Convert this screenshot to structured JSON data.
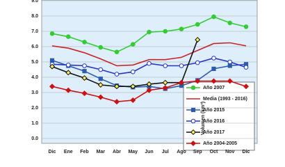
{
  "chart_data": {
    "type": "line",
    "y_label": "Volumen (km³)",
    "categories": [
      "Dic",
      "Ene",
      "Feb",
      "Mar",
      "Abr",
      "May",
      "Jun",
      "Jul",
      "Ago",
      "Sep",
      "Oct",
      "Nov",
      "Dic"
    ],
    "ylim": [
      0,
      9
    ],
    "yticks": [
      {
        "value": 0,
        "label": "0.0"
      },
      {
        "value": 1,
        "label": "1.0"
      },
      {
        "value": 2,
        "label": "2.0"
      },
      {
        "value": 3,
        "label": "3.0"
      },
      {
        "value": 4,
        "label": "4.0"
      },
      {
        "value": 5,
        "label": "5.0"
      },
      {
        "value": 6,
        "label": "6.0"
      },
      {
        "value": 7,
        "label": "7.0"
      },
      {
        "value": 8,
        "label": "8.0"
      },
      {
        "value": 9,
        "label": "9.0"
      }
    ],
    "grid": true,
    "series": [
      {
        "name": "Año 2007",
        "color": "#33cc33",
        "marker": "circle",
        "marker_fill": "#33cc33",
        "values": [
          6.85,
          6.65,
          6.3,
          5.95,
          5.65,
          6.15,
          6.95,
          7.0,
          7.15,
          7.45,
          7.95,
          7.55,
          7.3
        ]
      },
      {
        "name": "Media (1993 - 2016)",
        "color": "#cc2222",
        "marker": "none",
        "marker_fill": "#cc2222",
        "values": [
          6.05,
          5.9,
          5.6,
          5.2,
          4.75,
          4.8,
          5.15,
          5.15,
          5.3,
          5.75,
          6.2,
          6.25,
          6.05
        ]
      },
      {
        "name": "Año 2015",
        "color": "#2a5caa",
        "marker": "square",
        "marker_fill": "#2a5caa",
        "values": [
          5.1,
          4.75,
          4.4,
          3.9,
          3.45,
          3.35,
          3.4,
          3.25,
          3.45,
          3.8,
          4.55,
          4.75,
          4.85
        ]
      },
      {
        "name": "Año 2016",
        "color": "#2233cc",
        "marker": "circle",
        "marker_fill": "#ffffff",
        "values": [
          4.85,
          4.8,
          4.75,
          4.5,
          4.2,
          4.35,
          4.9,
          4.75,
          4.75,
          4.95,
          5.25,
          5.0,
          4.65
        ]
      },
      {
        "name": "Año 2017",
        "color": "#111111",
        "marker": "diamond",
        "marker_fill": "#ffee55",
        "values": [
          4.7,
          4.3,
          3.95,
          3.5,
          3.4,
          3.4,
          3.55,
          3.65,
          3.65,
          6.45,
          null,
          null,
          null
        ]
      },
      {
        "name": "Año 2004-2005",
        "color": "#cc1111",
        "marker": "diamond",
        "marker_fill": "#cc1111",
        "values": [
          3.4,
          3.15,
          2.95,
          2.7,
          2.4,
          2.5,
          3.15,
          3.3,
          3.65,
          3.75,
          3.75,
          3.75,
          3.4
        ]
      }
    ]
  }
}
